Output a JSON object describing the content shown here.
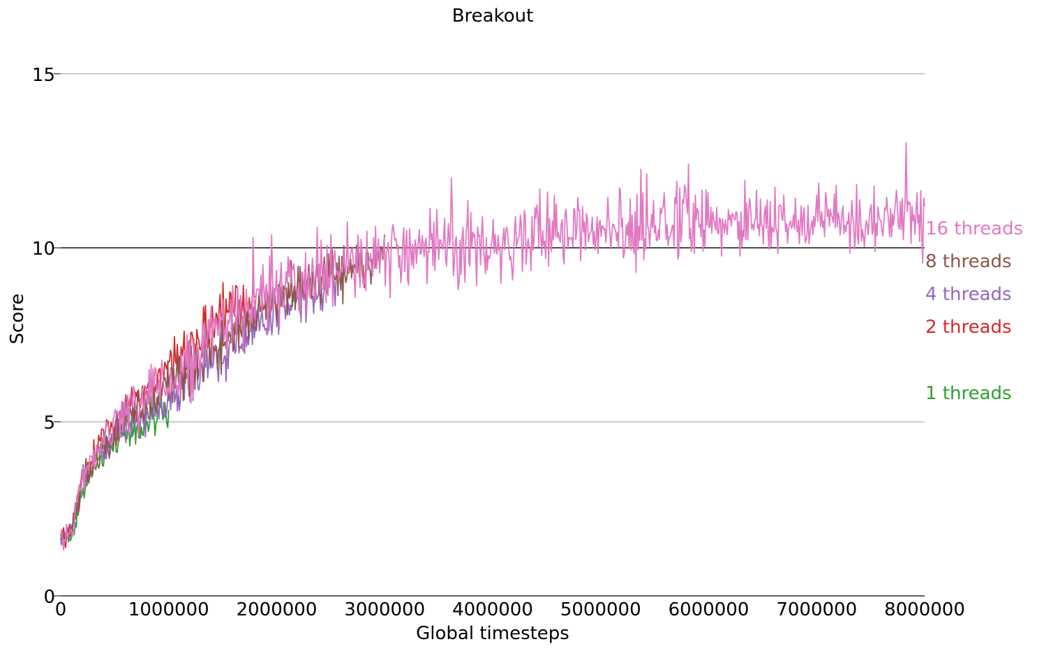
{
  "chart_data": {
    "type": "line",
    "title": "Breakout",
    "xlabel": "Global timesteps",
    "ylabel": "Score",
    "xlim": [
      0,
      8000000
    ],
    "ylim": [
      0,
      17
    ],
    "x_ticks": [
      "0",
      "1000000",
      "2000000",
      "3000000",
      "4000000",
      "5000000",
      "6000000",
      "7000000",
      "8000000"
    ],
    "y_ticks": [
      "0",
      "5",
      "10",
      "15"
    ],
    "y_tick_values": [
      0,
      5,
      10,
      15
    ],
    "reference_line": 10,
    "grid": "horizontal",
    "legend_placement": "right (labels at line ends)",
    "series": [
      {
        "name": "1 threads",
        "color": "#2ca02c",
        "x": [
          0,
          100000,
          200000,
          300000,
          400000,
          500000,
          600000,
          700000,
          800000,
          900000,
          1000000
        ],
        "y": [
          1.5,
          1.7,
          2.9,
          3.6,
          4.1,
          4.4,
          4.7,
          4.9,
          5.0,
          5.1,
          5.3
        ],
        "noise": 0.45
      },
      {
        "name": "2 threads",
        "color": "#d62728",
        "x": [
          0,
          100000,
          200000,
          400000,
          600000,
          800000,
          1000000,
          1200000,
          1400000,
          1600000,
          1800000
        ],
        "y": [
          1.6,
          1.9,
          3.3,
          4.6,
          5.3,
          5.9,
          6.5,
          7.1,
          7.7,
          8.2,
          8.5
        ],
        "noise": 0.5
      },
      {
        "name": "4 threads",
        "color": "#9467bd",
        "x": [
          0,
          100000,
          200000,
          400000,
          600000,
          800000,
          1000000,
          1200000,
          1400000,
          1600000,
          1800000,
          2000000,
          2200000,
          2400000,
          2550000
        ],
        "y": [
          1.6,
          1.9,
          3.4,
          4.3,
          4.8,
          5.2,
          5.6,
          6.2,
          6.7,
          7.3,
          7.8,
          8.2,
          8.6,
          8.9,
          9.0
        ],
        "noise": 0.5
      },
      {
        "name": "8 threads",
        "color": "#8c564b",
        "x": [
          0,
          100000,
          200000,
          400000,
          600000,
          800000,
          1000000,
          1200000,
          1400000,
          1600000,
          1800000,
          2000000,
          2200000,
          2400000,
          2600000,
          2800000,
          3000000
        ],
        "y": [
          1.7,
          1.9,
          3.3,
          4.4,
          5.0,
          5.5,
          6.1,
          6.6,
          7.1,
          7.7,
          8.1,
          8.5,
          8.8,
          9.0,
          9.3,
          9.5,
          9.6
        ],
        "noise": 0.55
      },
      {
        "name": "16 threads",
        "color": "#e377c2",
        "x": [
          0,
          100000,
          200000,
          400000,
          600000,
          800000,
          1000000,
          1200000,
          1400000,
          1600000,
          2000000,
          2500000,
          3000000,
          3500000,
          4000000,
          4500000,
          5000000,
          5500000,
          6000000,
          6500000,
          7000000,
          7500000,
          8000000
        ],
        "y": [
          1.6,
          1.8,
          3.4,
          4.6,
          5.2,
          5.7,
          6.2,
          6.8,
          7.4,
          8.0,
          8.7,
          9.3,
          9.7,
          9.9,
          10.0,
          10.4,
          10.6,
          10.7,
          10.7,
          10.7,
          10.8,
          10.8,
          10.8
        ],
        "noise": 0.7
      }
    ]
  }
}
